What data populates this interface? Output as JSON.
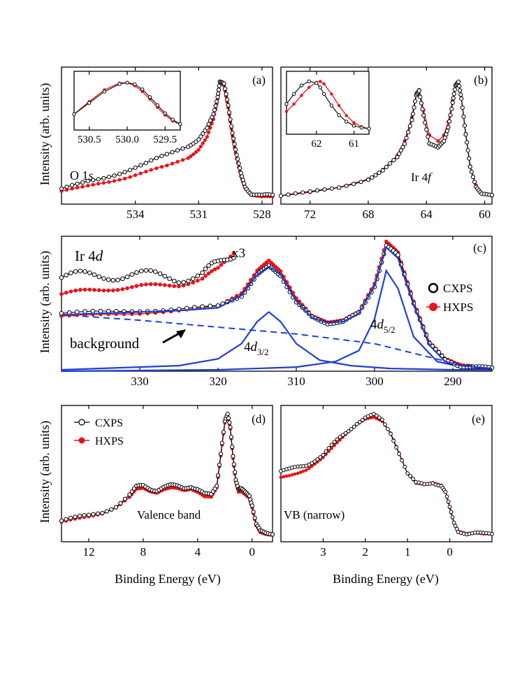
{
  "figure": {
    "xlabel_bottom_left": "Binding Energy (eV)",
    "xlabel_bottom_right": "Binding Energy (eV)",
    "ylabel": "Intensity (arb. units)"
  },
  "colors": {
    "cxps": "#000000",
    "hxps": "#e8141b",
    "fit": "#1f3fd6"
  },
  "chart_data": [
    {
      "id": "a",
      "type": "line",
      "panel_label": "(a)",
      "annotation": "O 1s",
      "annotation_main": "O 1",
      "annotation_italic": "s",
      "xlim": [
        537.5,
        527.5
      ],
      "xticks": [
        534,
        531,
        528
      ],
      "xtick_labels": [
        "534",
        "531",
        "528"
      ],
      "ylim": [
        0,
        1
      ],
      "series": [
        {
          "name": "CXPS",
          "x": [
            537.5,
            536.5,
            535.5,
            534.5,
            533.5,
            532.5,
            531.5,
            531.0,
            530.6,
            530.3,
            530.1,
            530.0,
            529.8,
            529.6,
            529.4,
            529.2,
            529.0,
            528.8,
            528.5,
            528.0,
            527.5
          ],
          "y": [
            0.1,
            0.14,
            0.19,
            0.25,
            0.31,
            0.38,
            0.46,
            0.52,
            0.6,
            0.72,
            0.88,
            1.0,
            0.97,
            0.8,
            0.58,
            0.38,
            0.22,
            0.12,
            0.06,
            0.04,
            0.04
          ]
        },
        {
          "name": "HXPS",
          "x": [
            537.5,
            536.5,
            535.5,
            534.5,
            533.5,
            532.5,
            531.5,
            531.0,
            530.6,
            530.3,
            530.1,
            530.0,
            529.8,
            529.6,
            529.4,
            529.2,
            529.0,
            528.8,
            528.5,
            528.0,
            527.5
          ],
          "y": [
            0.08,
            0.11,
            0.15,
            0.19,
            0.24,
            0.29,
            0.36,
            0.43,
            0.53,
            0.68,
            0.86,
            1.0,
            0.96,
            0.78,
            0.55,
            0.35,
            0.2,
            0.11,
            0.05,
            0.03,
            0.03
          ]
        }
      ],
      "inset": {
        "xlim": [
          530.7,
          529.3
        ],
        "xticks": [
          530.5,
          530.0,
          529.5
        ],
        "xtick_labels": [
          "530.5",
          "530.0",
          "529.5"
        ],
        "ylim": [
          0,
          1
        ],
        "series": [
          {
            "name": "CXPS",
            "x": [
              530.7,
              530.5,
              530.3,
              530.1,
              530.0,
              529.9,
              529.8,
              529.7,
              529.6,
              529.5,
              529.4,
              529.3
            ],
            "y": [
              0.3,
              0.55,
              0.8,
              0.97,
              1.0,
              0.96,
              0.85,
              0.68,
              0.5,
              0.32,
              0.18,
              0.08
            ]
          },
          {
            "name": "HXPS",
            "x": [
              530.7,
              530.5,
              530.3,
              530.1,
              530.0,
              529.9,
              529.8,
              529.7,
              529.6,
              529.5,
              529.4,
              529.3
            ],
            "y": [
              0.3,
              0.58,
              0.84,
              0.99,
              1.0,
              0.93,
              0.8,
              0.63,
              0.45,
              0.28,
              0.15,
              0.07
            ]
          }
        ]
      }
    },
    {
      "id": "b",
      "type": "line",
      "panel_label": "(b)",
      "annotation": "Ir 4f",
      "annotation_main": "Ir 4",
      "annotation_italic": "f",
      "xlim": [
        74,
        59.5
      ],
      "xticks": [
        72,
        68,
        64,
        60
      ],
      "xtick_labels": [
        "72",
        "68",
        "64",
        "60"
      ],
      "ylim": [
        0,
        1
      ],
      "series": [
        {
          "name": "CXPS",
          "x": [
            74,
            72,
            70,
            68,
            67,
            66,
            65.5,
            65.0,
            64.7,
            64.5,
            64.2,
            63.8,
            63.2,
            62.8,
            62.5,
            62.2,
            62.0,
            61.8,
            61.6,
            61.3,
            61.0,
            60.6,
            60.2,
            59.5
          ],
          "y": [
            0.04,
            0.07,
            0.11,
            0.18,
            0.25,
            0.36,
            0.48,
            0.68,
            0.88,
            0.92,
            0.72,
            0.48,
            0.44,
            0.5,
            0.62,
            0.82,
            0.96,
            1.0,
            0.86,
            0.55,
            0.28,
            0.12,
            0.06,
            0.04
          ]
        },
        {
          "name": "HXPS",
          "x": [
            74,
            72,
            70,
            68,
            67,
            66,
            65.5,
            65.0,
            64.7,
            64.5,
            64.2,
            63.8,
            63.2,
            62.8,
            62.5,
            62.2,
            62.0,
            61.8,
            61.6,
            61.3,
            61.0,
            60.6,
            60.2,
            59.5
          ],
          "y": [
            0.04,
            0.07,
            0.11,
            0.18,
            0.26,
            0.38,
            0.5,
            0.7,
            0.9,
            0.93,
            0.76,
            0.55,
            0.5,
            0.55,
            0.66,
            0.84,
            0.97,
            1.0,
            0.86,
            0.56,
            0.29,
            0.13,
            0.06,
            0.04
          ]
        }
      ],
      "inset": {
        "xlim": [
          62.8,
          60.6
        ],
        "xticks": [
          62,
          61
        ],
        "xtick_labels": [
          "62",
          "61"
        ],
        "ylim": [
          0,
          1
        ],
        "series": [
          {
            "name": "CXPS",
            "x": [
              62.8,
              62.6,
              62.4,
              62.2,
              62.0,
              61.9,
              61.8,
              61.6,
              61.4,
              61.2,
              61.0,
              60.8,
              60.6
            ],
            "y": [
              0.55,
              0.75,
              0.92,
              1.0,
              0.97,
              0.88,
              0.75,
              0.52,
              0.33,
              0.2,
              0.12,
              0.08,
              0.06
            ]
          },
          {
            "name": "HXPS",
            "x": [
              62.8,
              62.6,
              62.4,
              62.2,
              62.0,
              61.9,
              61.8,
              61.6,
              61.4,
              61.2,
              61.0,
              60.8,
              60.6
            ],
            "y": [
              0.4,
              0.55,
              0.72,
              0.88,
              0.98,
              1.0,
              0.95,
              0.75,
              0.52,
              0.32,
              0.18,
              0.1,
              0.06
            ]
          }
        ]
      }
    },
    {
      "id": "c",
      "type": "line",
      "panel_label": "(c)",
      "annotation": "Ir 4d",
      "annotation_main": "Ir 4",
      "annotation_italic": "d",
      "xlim": [
        340,
        285
      ],
      "xticks": [
        330,
        320,
        310,
        300,
        290
      ],
      "xtick_labels": [
        "330",
        "320",
        "310",
        "300",
        "290"
      ],
      "ylim": [
        0,
        1
      ],
      "multiplier_label": "x3",
      "peak_label_1": "4d3/2",
      "peak_label_1_main": "4",
      "peak_label_1_italic": "d",
      "peak_label_1_sub": "3/2",
      "peak_label_2": "4d5/2",
      "peak_label_2_main": "4",
      "peak_label_2_italic": "d",
      "peak_label_2_sub": "5/2",
      "background_label": "background",
      "legend": [
        "CXPS",
        "HXPS"
      ],
      "series": [
        {
          "name": "CXPS",
          "x": [
            340,
            335,
            330,
            325,
            320,
            317,
            315,
            313.5,
            312,
            310,
            308,
            306,
            304,
            302,
            300,
            298.5,
            297,
            295,
            293,
            291,
            289,
            287,
            285
          ],
          "y": [
            0.42,
            0.43,
            0.44,
            0.45,
            0.47,
            0.55,
            0.7,
            0.76,
            0.7,
            0.5,
            0.39,
            0.35,
            0.36,
            0.42,
            0.62,
            0.91,
            0.84,
            0.5,
            0.2,
            0.08,
            0.04,
            0.03,
            0.02
          ]
        },
        {
          "name": "HXPS",
          "x": [
            340,
            335,
            330,
            325,
            320,
            317,
            315,
            313.5,
            312,
            310,
            308,
            306,
            304,
            302,
            300,
            298.5,
            297,
            295,
            293,
            291,
            289,
            287,
            285
          ],
          "y": [
            0.4,
            0.41,
            0.42,
            0.44,
            0.47,
            0.57,
            0.73,
            0.8,
            0.73,
            0.53,
            0.4,
            0.36,
            0.37,
            0.43,
            0.64,
            0.94,
            0.86,
            0.51,
            0.21,
            0.09,
            0.05,
            0.03,
            0.02
          ]
        },
        {
          "name": "CXPS x3",
          "x": [
            340,
            337,
            334,
            331,
            328,
            325,
            322,
            320,
            318
          ],
          "y": [
            0.68,
            0.69,
            0.7,
            0.7,
            0.69,
            0.68,
            0.71,
            0.77,
            0.86
          ]
        },
        {
          "name": "HXPS x3",
          "x": [
            340,
            337,
            334,
            331,
            328,
            325,
            322,
            320,
            318
          ],
          "y": [
            0.56,
            0.58,
            0.6,
            0.61,
            0.62,
            0.63,
            0.67,
            0.74,
            0.87
          ]
        },
        {
          "name": "Envelope fit",
          "x": [
            340,
            335,
            330,
            325,
            320,
            317,
            315,
            313.5,
            312,
            310,
            308,
            306,
            304,
            302,
            300,
            298.5,
            297,
            295,
            293,
            291,
            289,
            287,
            285
          ],
          "y": [
            0.41,
            0.42,
            0.43,
            0.44,
            0.46,
            0.55,
            0.7,
            0.76,
            0.7,
            0.51,
            0.39,
            0.35,
            0.36,
            0.42,
            0.62,
            0.9,
            0.82,
            0.48,
            0.19,
            0.07,
            0.04,
            0.03,
            0.02
          ]
        },
        {
          "name": "Background",
          "x": [
            340,
            330,
            320,
            310,
            300,
            295,
            290,
            285
          ],
          "y": [
            0.41,
            0.37,
            0.32,
            0.27,
            0.2,
            0.13,
            0.06,
            0.03
          ]
        },
        {
          "name": "4d3/2 component",
          "x": [
            340,
            325,
            320,
            317,
            315,
            313.5,
            312,
            310,
            307,
            303,
            298,
            290,
            285
          ],
          "y": [
            0.01,
            0.04,
            0.09,
            0.2,
            0.36,
            0.43,
            0.36,
            0.2,
            0.08,
            0.04,
            0.02,
            0.01,
            0.01
          ]
        },
        {
          "name": "4d5/2 component",
          "x": [
            340,
            320,
            310,
            305,
            302,
            300,
            298.5,
            297,
            295,
            292,
            288,
            285
          ],
          "y": [
            0.0,
            0.01,
            0.03,
            0.07,
            0.15,
            0.38,
            0.73,
            0.6,
            0.25,
            0.07,
            0.02,
            0.01
          ]
        }
      ]
    },
    {
      "id": "d",
      "type": "line",
      "panel_label": "(d)",
      "annotation": "Valence band",
      "xlim": [
        14,
        -1.5
      ],
      "xticks": [
        12,
        8,
        4,
        0
      ],
      "xtick_labels": [
        "12",
        "8",
        "4",
        "0"
      ],
      "ylim": [
        0,
        1
      ],
      "legend": [
        "CXPS",
        "HXPS"
      ],
      "series": [
        {
          "name": "CXPS",
          "x": [
            14,
            13,
            12,
            11,
            10,
            9,
            8.5,
            8,
            7.5,
            7,
            6.5,
            6,
            5.5,
            5,
            4.5,
            4,
            3.5,
            3,
            2.6,
            2.3,
            2.0,
            1.8,
            1.6,
            1.4,
            1.2,
            1.0,
            0.8,
            0.5,
            0.2,
            0,
            -0.3,
            -0.6,
            -1.0,
            -1.5
          ],
          "y": [
            0.15,
            0.17,
            0.19,
            0.22,
            0.27,
            0.36,
            0.42,
            0.43,
            0.41,
            0.4,
            0.42,
            0.43,
            0.43,
            0.42,
            0.43,
            0.4,
            0.36,
            0.36,
            0.44,
            0.7,
            0.95,
            1.0,
            0.9,
            0.68,
            0.49,
            0.4,
            0.4,
            0.38,
            0.36,
            0.28,
            0.12,
            0.06,
            0.05,
            0.05
          ]
        },
        {
          "name": "HXPS",
          "x": [
            14,
            13,
            12,
            11,
            10,
            9,
            8.5,
            8,
            7.5,
            7,
            6.5,
            6,
            5.5,
            5,
            4.5,
            4,
            3.5,
            3,
            2.6,
            2.3,
            2.0,
            1.8,
            1.6,
            1.4,
            1.2,
            1.0,
            0.8,
            0.5,
            0.2,
            0,
            -0.3,
            -0.6,
            -1.0,
            -1.5
          ],
          "y": [
            0.14,
            0.16,
            0.18,
            0.21,
            0.26,
            0.34,
            0.4,
            0.41,
            0.39,
            0.38,
            0.4,
            0.41,
            0.41,
            0.4,
            0.41,
            0.38,
            0.34,
            0.34,
            0.42,
            0.68,
            0.94,
            1.0,
            0.89,
            0.66,
            0.47,
            0.38,
            0.38,
            0.36,
            0.34,
            0.26,
            0.11,
            0.05,
            0.04,
            0.04
          ]
        }
      ]
    },
    {
      "id": "e",
      "type": "line",
      "panel_label": "(e)",
      "annotation": "VB (narrow)",
      "xlim": [
        4,
        -1
      ],
      "xticks": [
        3,
        2,
        1,
        0
      ],
      "xtick_labels": [
        "3",
        "2",
        "1",
        "0"
      ],
      "ylim": [
        0,
        1
      ],
      "series": [
        {
          "name": "CXPS",
          "x": [
            4,
            3.8,
            3.6,
            3.4,
            3.2,
            3.0,
            2.8,
            2.6,
            2.4,
            2.2,
            2.0,
            1.8,
            1.6,
            1.4,
            1.2,
            1.0,
            0.8,
            0.6,
            0.4,
            0.2,
            0.1,
            0,
            -0.1,
            -0.2,
            -0.4,
            -0.6,
            -0.8,
            -1.0
          ],
          "y": [
            0.55,
            0.56,
            0.58,
            0.6,
            0.64,
            0.68,
            0.75,
            0.82,
            0.88,
            0.94,
            0.98,
            1.0,
            0.96,
            0.86,
            0.7,
            0.53,
            0.45,
            0.44,
            0.46,
            0.44,
            0.38,
            0.25,
            0.13,
            0.07,
            0.05,
            0.05,
            0.04,
            0.04
          ]
        },
        {
          "name": "HXPS",
          "x": [
            4,
            3.8,
            3.6,
            3.4,
            3.2,
            3.0,
            2.8,
            2.6,
            2.4,
            2.2,
            2.0,
            1.8,
            1.6,
            1.4,
            1.2,
            1.0,
            0.8,
            0.6,
            0.4,
            0.2,
            0.1,
            0,
            -0.1,
            -0.2,
            -0.4,
            -0.6,
            -0.8,
            -1.0
          ],
          "y": [
            0.5,
            0.51,
            0.53,
            0.56,
            0.61,
            0.66,
            0.73,
            0.8,
            0.87,
            0.93,
            0.97,
            0.98,
            0.95,
            0.86,
            0.7,
            0.53,
            0.45,
            0.44,
            0.46,
            0.44,
            0.38,
            0.25,
            0.13,
            0.07,
            0.05,
            0.05,
            0.04,
            0.04
          ]
        }
      ]
    }
  ]
}
